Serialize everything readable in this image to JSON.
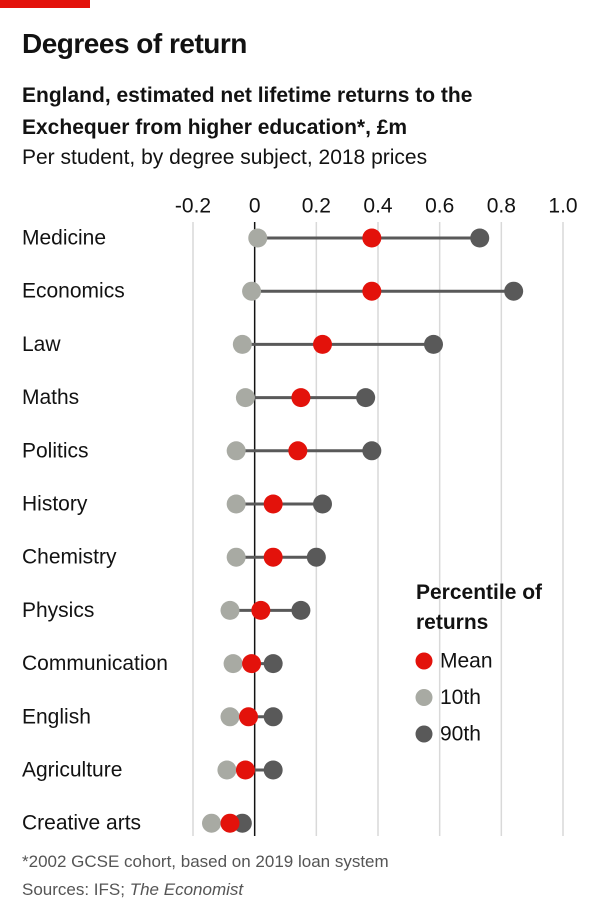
{
  "chart_data": {
    "type": "dot-range",
    "title": "Degrees of return",
    "subtitle": "England, estimated net lifetime returns to the Exchequer from higher education*, £m",
    "description": "Per student, by degree subject, 2018 prices",
    "legend_title": "Percentile of returns",
    "footnote": "*2002 GCSE cohort, based on 2019 loan system",
    "source": "Sources: IFS;",
    "source_publication": "The Economist",
    "categories": [
      "Medicine",
      "Economics",
      "Law",
      "Maths",
      "Politics",
      "History",
      "Chemistry",
      "Physics",
      "Communication",
      "English",
      "Agriculture",
      "Creative arts"
    ],
    "series": [
      {
        "name": "Mean",
        "color": "#e3120b",
        "values": [
          0.38,
          0.38,
          0.22,
          0.15,
          0.14,
          0.06,
          0.06,
          0.02,
          -0.01,
          -0.02,
          -0.03,
          -0.08
        ]
      },
      {
        "name": "10th",
        "color": "#a8aaa3",
        "values": [
          0.01,
          -0.01,
          -0.04,
          -0.03,
          -0.06,
          -0.06,
          -0.06,
          -0.08,
          -0.07,
          -0.08,
          -0.09,
          -0.14
        ]
      },
      {
        "name": "90th",
        "color": "#595959",
        "values": [
          0.73,
          0.84,
          0.58,
          0.36,
          0.38,
          0.22,
          0.2,
          0.15,
          0.06,
          0.06,
          0.06,
          -0.04
        ]
      }
    ],
    "xlim": [
      -0.2,
      1.0
    ],
    "xticks": [
      -0.2,
      0,
      0.2,
      0.4,
      0.6,
      0.8,
      {
        "value": 1.0,
        "label": "1.0"
      }
    ],
    "grid": true
  }
}
